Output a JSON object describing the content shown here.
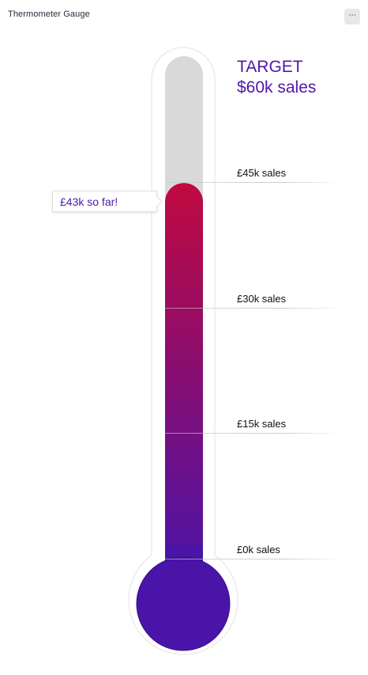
{
  "panel": {
    "title": "Thermometer Gauge",
    "menu_label": "···"
  },
  "target": {
    "line1": "TARGET",
    "line2": "$60k sales"
  },
  "callout": {
    "text": "£43k so far!"
  },
  "colors": {
    "accent": "#4f18a8",
    "fill_top": "#c0093f",
    "fill_bottom": "#4a14a8",
    "tube_empty": "#d9d9d9"
  },
  "chart_data": {
    "type": "thermometer",
    "title": "Thermometer Gauge",
    "value": 43,
    "target": 60,
    "unit": "k sales",
    "ylim": [
      0,
      60
    ],
    "ticks": [
      {
        "value": 45,
        "label": "£45k sales"
      },
      {
        "value": 30,
        "label": "£30k sales"
      },
      {
        "value": 15,
        "label": "£15k sales"
      },
      {
        "value": 0,
        "label": "£0k sales"
      }
    ],
    "annotations": [
      "£43k so far!",
      "TARGET $60k sales"
    ]
  }
}
